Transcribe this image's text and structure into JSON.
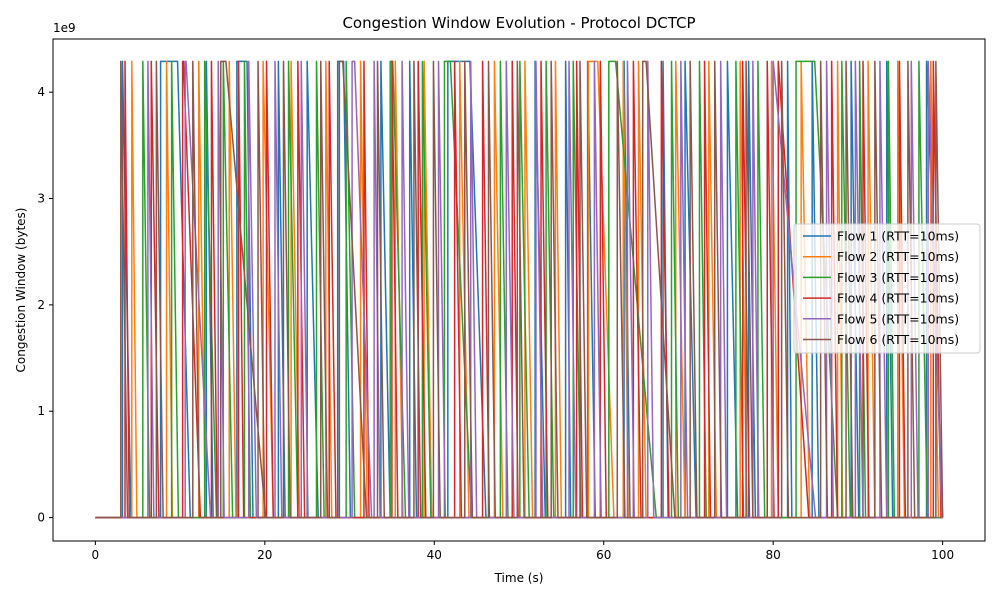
{
  "chart_data": {
    "type": "line",
    "title": "Congestion Window Evolution - Protocol DCTCP",
    "xlabel": "Time (s)",
    "ylabel": "Congestion Window (bytes)",
    "y_offset_text": "1e9",
    "xlim": [
      -5,
      105
    ],
    "ylim": [
      -0.22,
      4.5
    ],
    "y_scale_multiplier": 1000000000,
    "x_ticks": [
      0,
      20,
      40,
      60,
      80,
      100
    ],
    "x_tick_labels": [
      "0",
      "20",
      "40",
      "60",
      "80",
      "100"
    ],
    "y_ticks": [
      0,
      1,
      2,
      3,
      4
    ],
    "y_tick_labels": [
      "0",
      "1",
      "2",
      "3",
      "4"
    ],
    "grid": false,
    "legend_position": "center-right",
    "cwnd_max": 4.29,
    "x_start": 0,
    "x_end": 100,
    "series": [
      {
        "name": "Flow 1 (RTT=10ms)",
        "color": "#1f77b4",
        "sawtooth": [
          [
            3.2,
            3.2,
            4.2
          ],
          [
            7.7,
            9.7,
            11.2
          ],
          [
            13.1,
            13.1,
            13.9
          ],
          [
            16.7,
            17.9,
            18.6
          ],
          [
            21.6,
            21.6,
            22.4
          ],
          [
            25.0,
            25.0,
            26.3
          ],
          [
            28.6,
            29.3,
            30.1
          ],
          [
            33.7,
            33.7,
            34.8
          ],
          [
            37.1,
            37.1,
            37.9
          ],
          [
            41.6,
            44.2,
            46.1
          ],
          [
            51.9,
            51.9,
            53.1
          ],
          [
            55.5,
            55.5,
            56.1
          ],
          [
            58.1,
            58.1,
            59.0
          ],
          [
            62.4,
            62.4,
            63.1
          ],
          [
            67.0,
            67.0,
            67.6
          ],
          [
            69.6,
            69.6,
            70.9
          ],
          [
            74.6,
            74.6,
            75.8
          ],
          [
            77.1,
            77.1,
            77.9
          ],
          [
            81.7,
            81.7,
            82.2
          ],
          [
            84.6,
            84.6,
            85.4
          ],
          [
            89.2,
            89.2,
            90.1
          ],
          [
            93.4,
            93.4,
            94.1
          ],
          [
            98.1,
            98.1,
            100.0
          ]
        ]
      },
      {
        "name": "Flow 2 (RTT=10ms)",
        "color": "#ff7f0e",
        "sawtooth": [
          [
            4.3,
            4.3,
            4.9
          ],
          [
            8.4,
            8.4,
            9.1
          ],
          [
            12.2,
            12.2,
            13.0
          ],
          [
            15.8,
            15.8,
            16.6
          ],
          [
            19.8,
            19.8,
            21.0
          ],
          [
            23.1,
            23.1,
            24.1
          ],
          [
            27.2,
            27.2,
            27.9
          ],
          [
            31.3,
            31.3,
            32.1
          ],
          [
            35.4,
            35.4,
            36.3
          ],
          [
            38.8,
            38.8,
            39.7
          ],
          [
            43.0,
            43.0,
            44.1
          ],
          [
            47.1,
            47.1,
            48.1
          ],
          [
            50.7,
            50.7,
            51.6
          ],
          [
            54.3,
            54.3,
            55.0
          ],
          [
            58.2,
            59.3,
            61.2
          ],
          [
            62.3,
            62.3,
            62.9
          ],
          [
            64.1,
            64.1,
            65.0
          ],
          [
            68.5,
            68.5,
            69.6
          ],
          [
            72.4,
            72.4,
            73.3
          ],
          [
            76.1,
            76.1,
            76.9
          ],
          [
            79.8,
            79.8,
            80.6
          ],
          [
            83.3,
            83.3,
            84.3
          ],
          [
            87.6,
            87.6,
            88.2
          ],
          [
            91.2,
            91.2,
            92.0
          ],
          [
            94.7,
            94.7,
            95.5
          ],
          [
            98.6,
            98.6,
            99.5
          ]
        ]
      },
      {
        "name": "Flow 3 (RTT=10ms)",
        "color": "#2ca02c",
        "sawtooth": [
          [
            5.6,
            5.6,
            6.4
          ],
          [
            9.0,
            9.0,
            9.8
          ],
          [
            12.9,
            12.9,
            14.3
          ],
          [
            15.1,
            15.1,
            16.2
          ],
          [
            17.6,
            17.6,
            18.3
          ],
          [
            22.8,
            22.8,
            23.9
          ],
          [
            26.1,
            26.1,
            27.0
          ],
          [
            29.6,
            29.6,
            30.6
          ],
          [
            34.8,
            35.1,
            36.6
          ],
          [
            38.6,
            38.6,
            39.6
          ],
          [
            41.2,
            41.9,
            44.4
          ],
          [
            47.8,
            47.8,
            48.7
          ],
          [
            50.1,
            50.1,
            51.2
          ],
          [
            53.2,
            53.2,
            54.1
          ],
          [
            56.4,
            56.4,
            57.3
          ],
          [
            60.6,
            61.4,
            66.2
          ],
          [
            68.0,
            68.0,
            68.8
          ],
          [
            71.3,
            71.3,
            72.1
          ],
          [
            75.6,
            75.6,
            76.5
          ],
          [
            78.2,
            78.2,
            79.0
          ],
          [
            82.7,
            84.9,
            87.6
          ],
          [
            88.1,
            88.1,
            89.1
          ],
          [
            90.2,
            90.2,
            90.9
          ],
          [
            93.6,
            93.6,
            94.3
          ],
          [
            97.2,
            97.2,
            98.2
          ]
        ]
      },
      {
        "name": "Flow 4 (RTT=10ms)",
        "color": "#d62728",
        "sawtooth": [
          [
            3.5,
            3.5,
            4.0
          ],
          [
            6.6,
            6.6,
            7.5
          ],
          [
            10.3,
            10.4,
            12.4
          ],
          [
            13.7,
            13.7,
            14.4
          ],
          [
            16.9,
            16.9,
            17.5
          ],
          [
            20.2,
            20.2,
            21.0
          ],
          [
            23.9,
            23.9,
            24.7
          ],
          [
            27.6,
            27.6,
            28.4
          ],
          [
            31.7,
            31.7,
            32.3
          ],
          [
            35.0,
            35.0,
            35.7
          ],
          [
            38.1,
            38.1,
            39.0
          ],
          [
            42.4,
            42.4,
            43.2
          ],
          [
            45.7,
            45.7,
            46.5
          ],
          [
            49.2,
            49.2,
            49.9
          ],
          [
            52.6,
            52.6,
            53.4
          ],
          [
            56.8,
            56.8,
            57.5
          ],
          [
            59.6,
            59.6,
            60.3
          ],
          [
            63.5,
            63.5,
            64.4
          ],
          [
            66.8,
            66.8,
            67.7
          ],
          [
            71.9,
            71.9,
            72.6
          ],
          [
            76.4,
            76.4,
            77.2
          ],
          [
            79.3,
            79.3,
            80.1
          ],
          [
            80.6,
            80.6,
            84.2
          ],
          [
            86.9,
            86.9,
            87.6
          ],
          [
            90.6,
            90.6,
            91.3
          ],
          [
            94.9,
            94.9,
            95.6
          ],
          [
            98.9,
            98.9,
            99.8
          ]
        ]
      },
      {
        "name": "Flow 5 (RTT=10ms)",
        "color": "#9467bd",
        "sawtooth": [
          [
            6.2,
            6.2,
            6.9
          ],
          [
            10.6,
            10.7,
            13.6
          ],
          [
            14.5,
            14.5,
            15.2
          ],
          [
            18.1,
            18.1,
            19.0
          ],
          [
            21.2,
            21.2,
            22.0
          ],
          [
            24.3,
            24.3,
            25.1
          ],
          [
            30.3,
            30.6,
            32.6
          ],
          [
            32.9,
            32.9,
            33.6
          ],
          [
            36.2,
            36.2,
            37.0
          ],
          [
            40.5,
            40.5,
            41.3
          ],
          [
            44.3,
            44.3,
            45.0
          ],
          [
            48.5,
            48.5,
            49.4
          ],
          [
            52.0,
            52.0,
            52.8
          ],
          [
            55.9,
            55.9,
            56.7
          ],
          [
            58.9,
            58.9,
            59.7
          ],
          [
            62.8,
            62.8,
            63.6
          ],
          [
            65.2,
            65.2,
            65.9
          ],
          [
            69.1,
            69.1,
            69.9
          ],
          [
            73.8,
            73.8,
            74.5
          ],
          [
            77.6,
            77.6,
            78.3
          ],
          [
            80.0,
            80.0,
            85.0
          ],
          [
            86.3,
            86.3,
            87.1
          ],
          [
            89.7,
            89.7,
            90.6
          ],
          [
            92.6,
            92.6,
            93.4
          ],
          [
            96.3,
            96.3,
            97.1
          ],
          [
            98.3,
            98.3,
            99.9
          ]
        ]
      },
      {
        "name": "Flow 6 (RTT=10ms)",
        "color": "#8c564b",
        "sawtooth": [
          [
            3.0,
            3.0,
            3.8
          ],
          [
            7.2,
            7.2,
            8.0
          ],
          [
            11.5,
            11.5,
            12.3
          ],
          [
            14.8,
            15.4,
            20.1
          ],
          [
            19.2,
            19.2,
            20.0
          ],
          [
            22.2,
            22.2,
            23.0
          ],
          [
            26.6,
            26.6,
            27.4
          ],
          [
            28.8,
            29.2,
            32.0
          ],
          [
            33.3,
            33.3,
            34.1
          ],
          [
            37.6,
            37.6,
            38.4
          ],
          [
            39.9,
            39.9,
            40.7
          ],
          [
            43.6,
            43.6,
            44.5
          ],
          [
            46.4,
            46.4,
            47.2
          ],
          [
            49.8,
            49.8,
            50.6
          ],
          [
            53.8,
            53.8,
            54.6
          ],
          [
            57.2,
            57.2,
            58.0
          ],
          [
            61.6,
            61.6,
            62.5
          ],
          [
            64.6,
            65.0,
            68.4
          ],
          [
            70.2,
            70.2,
            71.0
          ],
          [
            73.1,
            73.1,
            73.9
          ],
          [
            76.8,
            76.8,
            77.6
          ],
          [
            81.0,
            81.0,
            81.8
          ],
          [
            85.6,
            85.6,
            86.4
          ],
          [
            88.6,
            88.6,
            89.4
          ],
          [
            92.0,
            92.0,
            92.8
          ],
          [
            95.9,
            95.9,
            96.7
          ],
          [
            99.2,
            99.2,
            100.0
          ]
        ]
      }
    ]
  }
}
